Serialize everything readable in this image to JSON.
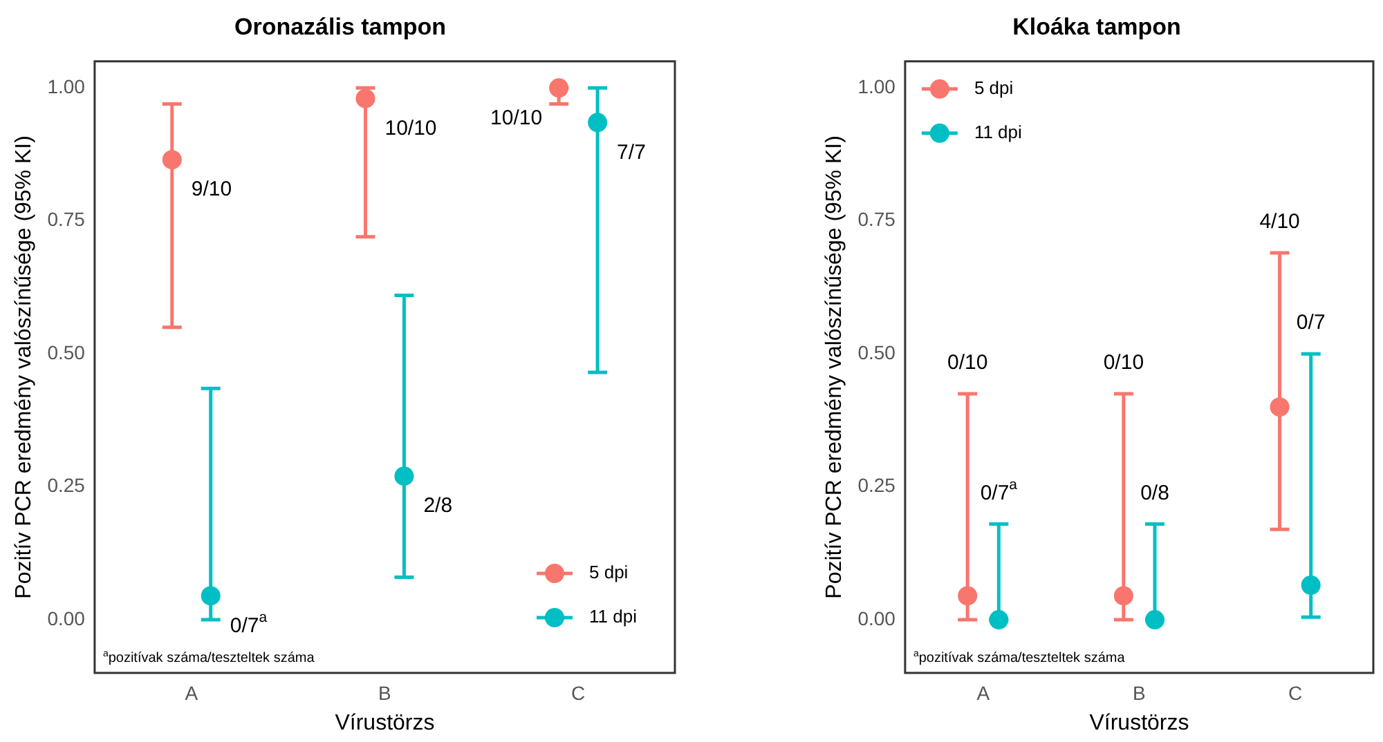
{
  "chart_data": [
    {
      "type": "scatter",
      "title": "Oronazális tampon",
      "xlabel": "Vírustörzs",
      "ylabel": "Pozitív PCR eredmény valószínűsége (95% KI)",
      "categories": [
        "A",
        "B",
        "C"
      ],
      "ylim": [
        -0.1,
        1.05
      ],
      "yticks": [
        {
          "value": 0,
          "label": "0.00"
        },
        {
          "value": 0.25,
          "label": "0.25"
        },
        {
          "value": 0.5,
          "label": "0.50"
        },
        {
          "value": 0.75,
          "label": "0.75"
        },
        {
          "value": 1,
          "label": "1.00"
        }
      ],
      "grid": false,
      "legend": "bottom right",
      "marker": "circle",
      "annotations": [
        "$^{a}$pozitívak száma/teszteltek száma",
        "9/10",
        "10/10",
        "10/10",
        "0/7$^{a}$",
        "2/8",
        "7/7"
      ],
      "series": [
        {
          "name": "5 dpi",
          "color": "#f8766d",
          "values": [
            0.865,
            0.98,
            1.0
          ],
          "errors": [
            [
              0.55,
              0.97
            ],
            [
              0.72,
              1.0
            ],
            [
              0.97,
              1.0
            ]
          ]
        },
        {
          "name": "11 dpi",
          "color": "#00bfc4",
          "values": [
            0.045,
            0.27,
            0.935
          ],
          "errors": [
            [
              0.0,
              0.435
            ],
            [
              0.08,
              0.61
            ],
            [
              0.465,
              1.0
            ]
          ]
        }
      ]
    },
    {
      "type": "scatter",
      "title": "Kloáka tampon",
      "xlabel": "Vírustörzs",
      "ylabel": "Pozitív PCR eredmény valószínűsége (95% KI)",
      "categories": [
        "A",
        "B",
        "C"
      ],
      "ylim": [
        -0.1,
        1.05
      ],
      "yticks": [
        {
          "value": 0,
          "label": "0.00"
        },
        {
          "value": 0.25,
          "label": "0.25"
        },
        {
          "value": 0.5,
          "label": "0.50"
        },
        {
          "value": 0.75,
          "label": "0.75"
        },
        {
          "value": 1,
          "label": "1.00"
        }
      ],
      "grid": false,
      "legend": "top left",
      "marker": "circle",
      "annotations": [
        "$^{a}$pozitívak száma/teszteltek száma",
        {
          "text": "0/10",
          "x": "A",
          "y": 0.425
        },
        {
          "text": "0/10",
          "x": "B",
          "y": 0.425
        },
        {
          "text": "4/10",
          "x": "C",
          "y": 0.69
        },
        {
          "text": "0/7$^{a}$",
          "x": "A",
          "y": 0.18
        },
        {
          "text": "0/8",
          "x": "B",
          "y": 0.18
        },
        {
          "text": "0/7",
          "x": "C",
          "y": 0.5
        }
      ],
      "series": [
        {
          "name": "5 dpi",
          "color": "#f8766d",
          "values": [
            0.045,
            0.045,
            0.4
          ],
          "errors": [
            [
              0.0,
              0.425
            ],
            [
              0.0,
              0.425
            ],
            [
              0.17,
              0.69
            ]
          ]
        },
        {
          "name": "11 dpi",
          "color": "#00bfc4",
          "values": [
            0.0,
            0.0,
            0.065
          ],
          "errors": [
            [
              0.0,
              0.18
            ],
            [
              0.0,
              0.18
            ],
            [
              0.005,
              0.5
            ]
          ]
        }
      ]
    }
  ]
}
